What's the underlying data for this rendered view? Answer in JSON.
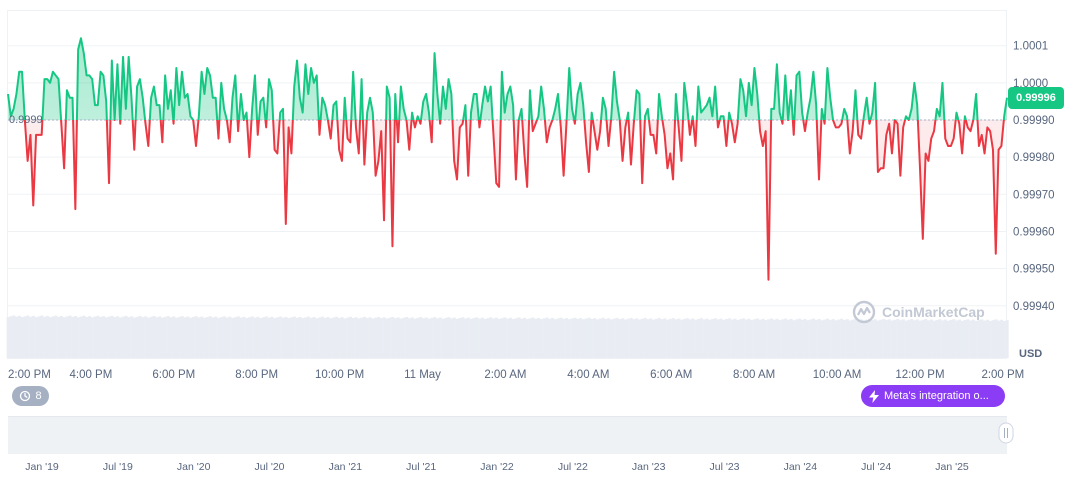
{
  "chart_data": {
    "type": "line",
    "currency": "USD",
    "baseline": 0.9999,
    "baseline_label": "0.9999",
    "current_price": "0.99996",
    "ylim": [
      0.99935,
      1.00014
    ],
    "y_ticks": [
      "1.0001",
      "1.0000",
      "0.99990",
      "0.99980",
      "0.99970",
      "0.99960",
      "0.99950",
      "0.99940"
    ],
    "y_tick_values": [
      1.0001,
      1.0,
      0.9999,
      0.9998,
      0.9997,
      0.9996,
      0.9995,
      0.9994
    ],
    "x_ticks": [
      "2:00 PM",
      "4:00 PM",
      "6:00 PM",
      "8:00 PM",
      "10:00 PM",
      "11 May",
      "2:00 AM",
      "4:00 AM",
      "6:00 AM",
      "8:00 AM",
      "10:00 AM",
      "12:00 PM",
      "2:00 PM"
    ],
    "x_tick_hours": [
      0,
      2,
      4,
      6,
      8,
      10,
      12,
      14,
      16,
      18,
      20,
      22,
      24
    ],
    "x_range_hours": [
      0,
      24.1
    ],
    "navigator_ticks": [
      "Jan '19",
      "Jul '19",
      "Jan '20",
      "Jul '20",
      "Jan '21",
      "Jul '21",
      "Jan '22",
      "Jul '22",
      "Jan '23",
      "Jul '23",
      "Jan '24",
      "Jul '24",
      "Jan '25"
    ],
    "values": [
      0.99997,
      0.99991,
      0.99993,
      0.99997,
      1.00003,
      1.00003,
      0.9999,
      0.99979,
      0.99986,
      0.99967,
      0.99986,
      0.99986,
      0.99986,
      1.00001,
      1.00001,
      1.0,
      1.00003,
      1.00002,
      1.00001,
      0.99989,
      0.99977,
      0.99998,
      0.99996,
      0.99996,
      0.99966,
      1.00009,
      1.00012,
      1.00008,
      1.00002,
      1.00002,
      1.00001,
      0.99994,
      0.99994,
      1.00003,
      1.00002,
      0.99995,
      0.99973,
      1.00006,
      0.9999,
      1.00005,
      0.99989,
      1.00007,
      0.99993,
      1.00007,
      0.99996,
      0.99982,
      0.99999,
      1.00001,
      0.99996,
      0.99989,
      0.99983,
      0.99996,
      0.99999,
      0.99994,
      0.99994,
      0.99984,
      1.00002,
      0.99993,
      0.99998,
      0.99989,
      1.00004,
      0.99994,
      1.00003,
      0.99996,
      0.99997,
      0.99991,
      0.9999,
      0.99983,
      0.99991,
      1.00003,
      0.99997,
      1.00004,
      1.00002,
      0.99996,
      0.99996,
      0.99985,
      1.0,
      0.99993,
      0.9999,
      0.99984,
      0.99996,
      1.00002,
      0.99987,
      0.99997,
      0.9999,
      0.99992,
      0.9998,
      0.99993,
      1.00002,
      0.99986,
      0.99995,
      0.99996,
      0.99988,
      1.00001,
      0.99998,
      0.99982,
      0.99981,
      0.99992,
      0.99993,
      0.99962,
      0.99988,
      0.99981,
      0.99999,
      1.00006,
      0.99996,
      0.99992,
      1.00005,
      0.99997,
      1.00004,
      1.0,
      1.00002,
      0.99986,
      0.99996,
      0.99994,
      0.9999,
      0.99985,
      0.99994,
      0.99995,
      0.99982,
      0.99979,
      0.99996,
      0.99985,
      0.99984,
      1.00003,
      0.99988,
      0.99981,
      1.00001,
      0.99978,
      0.99992,
      0.99996,
      0.99992,
      0.99975,
      0.99979,
      0.99987,
      0.99963,
      0.99999,
      0.99996,
      0.99956,
      0.99997,
      0.99984,
      0.99999,
      0.99993,
      0.9999,
      0.99982,
      0.99992,
      0.99988,
      0.99991,
      0.99989,
      0.99995,
      0.99997,
      0.99992,
      0.99984,
      1.00008,
      0.99997,
      0.99989,
      0.99999,
      0.99993,
      1.00001,
      0.99997,
      0.99979,
      0.99974,
      0.99988,
      0.99989,
      0.99994,
      0.99975,
      0.99992,
      0.99997,
      0.99997,
      0.99988,
      0.99994,
      0.99999,
      0.99995,
      0.99999,
      0.99986,
      0.99973,
      0.99972,
      1.00003,
      0.99992,
      0.99997,
      0.99999,
      0.99994,
      0.99974,
      0.9999,
      0.99993,
      0.99981,
      0.99972,
      0.99998,
      0.99987,
      0.99989,
      0.99991,
      0.99999,
      0.99993,
      0.99984,
      0.99988,
      0.9999,
      0.99993,
      0.99997,
      0.99988,
      0.99975,
      0.99989,
      1.00004,
      0.99993,
      0.99989,
      0.99997,
      1.0,
      0.99994,
      0.99984,
      0.99976,
      0.99992,
      0.99987,
      0.99982,
      0.99987,
      0.99996,
      0.99993,
      0.99983,
      0.99991,
      1.00003,
      0.99995,
      0.9999,
      0.99979,
      0.99988,
      0.99992,
      0.99978,
      0.99989,
      0.99998,
      0.99997,
      0.99973,
      0.99991,
      0.99993,
      0.99986,
      0.99986,
      0.99981,
      0.99997,
      0.99991,
      0.99986,
      0.99977,
      0.99981,
      0.99974,
      0.99997,
      0.99988,
      0.99979,
      1.0,
      0.99994,
      0.99986,
      0.99991,
      0.99983,
      0.99999,
      0.99992,
      0.99993,
      0.99994,
      0.99996,
      0.99991,
      0.99999,
      0.99988,
      0.99991,
      0.99991,
      0.99983,
      0.99992,
      0.99989,
      0.99984,
      0.99989,
      1.00001,
      0.99998,
      0.99991,
      1.0,
      0.99994,
      1.00004,
      0.99997,
      0.99987,
      0.99983,
      0.99987,
      0.99947,
      0.99993,
      0.99993,
      1.00005,
      0.99992,
      0.99989,
      1.00002,
      0.9999,
      0.99998,
      0.99986,
      1.00002,
      1.00003,
      0.99992,
      0.99987,
      0.99992,
      0.99996,
      1.00003,
      0.99994,
      0.99974,
      0.99993,
      0.99989,
      1.00004,
      0.99996,
      0.9999,
      0.99988,
      0.99988,
      0.99989,
      0.99993,
      0.99991,
      0.99981,
      0.99987,
      0.99998,
      0.99986,
      0.99985,
      0.99991,
      0.99996,
      0.99989,
      0.99992,
      1.0,
      0.99976,
      0.99977,
      0.99977,
      0.99986,
      0.99989,
      0.99981,
      0.9999,
      0.99989,
      0.99975,
      0.99988,
      0.99991,
      0.9999,
      0.99993,
      1.0,
      0.99994,
      0.99977,
      0.99958,
      0.99981,
      0.99979,
      0.99985,
      0.99987,
      0.99993,
      0.99991,
      1.0,
      0.99985,
      0.99983,
      0.99983,
      0.99985,
      0.99992,
      0.99989,
      0.99981,
      0.99991,
      0.99988,
      0.99987,
      0.9999,
      0.99997,
      0.99983,
      0.99986,
      0.99981,
      0.99988,
      0.99987,
      0.99982,
      0.99954,
      0.99982,
      0.99983,
      0.99991,
      0.99996
    ],
    "up_color": "#16c784",
    "down_color": "#ea3943"
  },
  "ui": {
    "currency_label": "USD",
    "events_count": "8",
    "news_label": "Meta's integration o...",
    "watermark": "CoinMarketCap",
    "history-icon": "history-icon",
    "bolt-icon": "bolt-icon",
    "logo-icon": "coinmarketcap-logo-icon"
  }
}
